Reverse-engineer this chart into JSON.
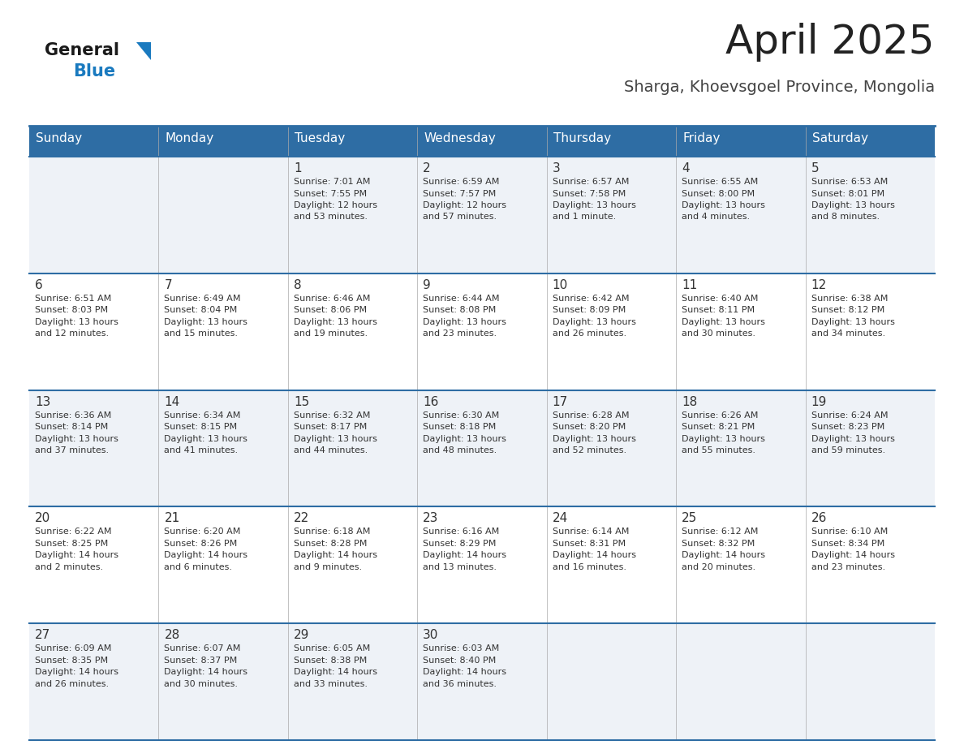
{
  "title": "April 2025",
  "subtitle": "Sharga, Khoevsgoel Province, Mongolia",
  "title_color": "#222222",
  "subtitle_color": "#444444",
  "header_bg": "#2e6da4",
  "header_text_color": "#ffffff",
  "days_of_week": [
    "Sunday",
    "Monday",
    "Tuesday",
    "Wednesday",
    "Thursday",
    "Friday",
    "Saturday"
  ],
  "row_bg_odd": "#eef2f7",
  "row_bg_even": "#ffffff",
  "cell_text_color": "#333333",
  "day_num_color": "#333333",
  "divider_color": "#2e6da4",
  "logo_general_color": "#1a1a1a",
  "logo_blue_color": "#1a7abf",
  "weeks": [
    [
      {
        "day": "",
        "info": ""
      },
      {
        "day": "",
        "info": ""
      },
      {
        "day": "1",
        "info": "Sunrise: 7:01 AM\nSunset: 7:55 PM\nDaylight: 12 hours\nand 53 minutes."
      },
      {
        "day": "2",
        "info": "Sunrise: 6:59 AM\nSunset: 7:57 PM\nDaylight: 12 hours\nand 57 minutes."
      },
      {
        "day": "3",
        "info": "Sunrise: 6:57 AM\nSunset: 7:58 PM\nDaylight: 13 hours\nand 1 minute."
      },
      {
        "day": "4",
        "info": "Sunrise: 6:55 AM\nSunset: 8:00 PM\nDaylight: 13 hours\nand 4 minutes."
      },
      {
        "day": "5",
        "info": "Sunrise: 6:53 AM\nSunset: 8:01 PM\nDaylight: 13 hours\nand 8 minutes."
      }
    ],
    [
      {
        "day": "6",
        "info": "Sunrise: 6:51 AM\nSunset: 8:03 PM\nDaylight: 13 hours\nand 12 minutes."
      },
      {
        "day": "7",
        "info": "Sunrise: 6:49 AM\nSunset: 8:04 PM\nDaylight: 13 hours\nand 15 minutes."
      },
      {
        "day": "8",
        "info": "Sunrise: 6:46 AM\nSunset: 8:06 PM\nDaylight: 13 hours\nand 19 minutes."
      },
      {
        "day": "9",
        "info": "Sunrise: 6:44 AM\nSunset: 8:08 PM\nDaylight: 13 hours\nand 23 minutes."
      },
      {
        "day": "10",
        "info": "Sunrise: 6:42 AM\nSunset: 8:09 PM\nDaylight: 13 hours\nand 26 minutes."
      },
      {
        "day": "11",
        "info": "Sunrise: 6:40 AM\nSunset: 8:11 PM\nDaylight: 13 hours\nand 30 minutes."
      },
      {
        "day": "12",
        "info": "Sunrise: 6:38 AM\nSunset: 8:12 PM\nDaylight: 13 hours\nand 34 minutes."
      }
    ],
    [
      {
        "day": "13",
        "info": "Sunrise: 6:36 AM\nSunset: 8:14 PM\nDaylight: 13 hours\nand 37 minutes."
      },
      {
        "day": "14",
        "info": "Sunrise: 6:34 AM\nSunset: 8:15 PM\nDaylight: 13 hours\nand 41 minutes."
      },
      {
        "day": "15",
        "info": "Sunrise: 6:32 AM\nSunset: 8:17 PM\nDaylight: 13 hours\nand 44 minutes."
      },
      {
        "day": "16",
        "info": "Sunrise: 6:30 AM\nSunset: 8:18 PM\nDaylight: 13 hours\nand 48 minutes."
      },
      {
        "day": "17",
        "info": "Sunrise: 6:28 AM\nSunset: 8:20 PM\nDaylight: 13 hours\nand 52 minutes."
      },
      {
        "day": "18",
        "info": "Sunrise: 6:26 AM\nSunset: 8:21 PM\nDaylight: 13 hours\nand 55 minutes."
      },
      {
        "day": "19",
        "info": "Sunrise: 6:24 AM\nSunset: 8:23 PM\nDaylight: 13 hours\nand 59 minutes."
      }
    ],
    [
      {
        "day": "20",
        "info": "Sunrise: 6:22 AM\nSunset: 8:25 PM\nDaylight: 14 hours\nand 2 minutes."
      },
      {
        "day": "21",
        "info": "Sunrise: 6:20 AM\nSunset: 8:26 PM\nDaylight: 14 hours\nand 6 minutes."
      },
      {
        "day": "22",
        "info": "Sunrise: 6:18 AM\nSunset: 8:28 PM\nDaylight: 14 hours\nand 9 minutes."
      },
      {
        "day": "23",
        "info": "Sunrise: 6:16 AM\nSunset: 8:29 PM\nDaylight: 14 hours\nand 13 minutes."
      },
      {
        "day": "24",
        "info": "Sunrise: 6:14 AM\nSunset: 8:31 PM\nDaylight: 14 hours\nand 16 minutes."
      },
      {
        "day": "25",
        "info": "Sunrise: 6:12 AM\nSunset: 8:32 PM\nDaylight: 14 hours\nand 20 minutes."
      },
      {
        "day": "26",
        "info": "Sunrise: 6:10 AM\nSunset: 8:34 PM\nDaylight: 14 hours\nand 23 minutes."
      }
    ],
    [
      {
        "day": "27",
        "info": "Sunrise: 6:09 AM\nSunset: 8:35 PM\nDaylight: 14 hours\nand 26 minutes."
      },
      {
        "day": "28",
        "info": "Sunrise: 6:07 AM\nSunset: 8:37 PM\nDaylight: 14 hours\nand 30 minutes."
      },
      {
        "day": "29",
        "info": "Sunrise: 6:05 AM\nSunset: 8:38 PM\nDaylight: 14 hours\nand 33 minutes."
      },
      {
        "day": "30",
        "info": "Sunrise: 6:03 AM\nSunset: 8:40 PM\nDaylight: 14 hours\nand 36 minutes."
      },
      {
        "day": "",
        "info": ""
      },
      {
        "day": "",
        "info": ""
      },
      {
        "day": "",
        "info": ""
      }
    ]
  ]
}
